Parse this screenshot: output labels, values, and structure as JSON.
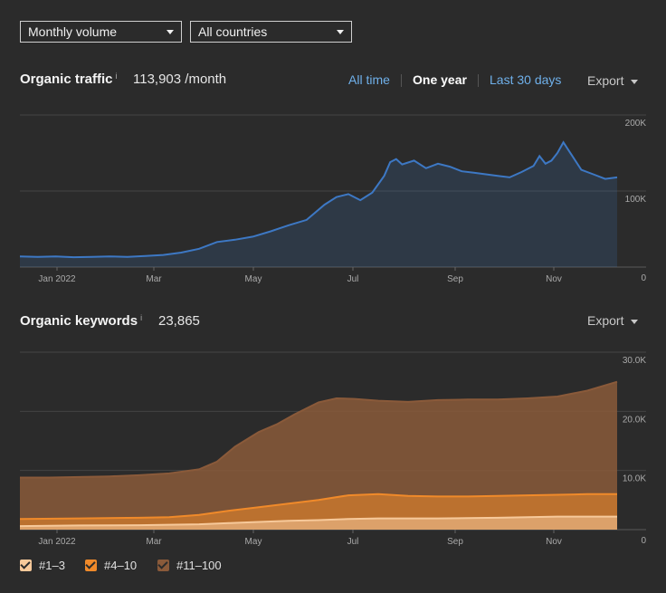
{
  "controls": {
    "volume_select": "Monthly volume",
    "country_select": "All countries"
  },
  "traffic": {
    "title": "Organic traffic",
    "info": "i",
    "value": "113,903 /month",
    "ranges": [
      "All time",
      "One year",
      "Last 30 days"
    ],
    "active_range": "One year",
    "export_label": "Export"
  },
  "keywords": {
    "title": "Organic keywords",
    "info": "i",
    "value": "23,865",
    "export_label": "Export"
  },
  "legend": [
    {
      "label": "#1–3",
      "color": "#f7c99a"
    },
    {
      "label": "#4–10",
      "color": "#f08a2a"
    },
    {
      "label": "#11–100",
      "color": "#8a5a3a"
    }
  ],
  "chart_data": [
    {
      "type": "area",
      "title": "Organic traffic",
      "x_tick_labels": [
        "Jan 2022",
        "Mar",
        "May",
        "Jul",
        "Sep",
        "Nov"
      ],
      "y_tick_labels": [
        "200K",
        "100K",
        "0"
      ],
      "ylim": [
        0,
        200000
      ],
      "color": "#3d78c4",
      "grid": true,
      "series": [
        {
          "x": [
            0,
            0.03,
            0.06,
            0.09,
            0.12,
            0.15,
            0.18,
            0.21,
            0.24,
            0.27,
            0.3,
            0.33,
            0.36,
            0.39,
            0.42,
            0.45,
            0.48,
            0.51,
            0.53,
            0.55,
            0.57,
            0.59,
            0.61,
            0.62,
            0.63,
            0.64,
            0.66,
            0.68,
            0.7,
            0.72,
            0.74,
            0.76,
            0.78,
            0.8,
            0.82,
            0.84,
            0.86,
            0.87,
            0.88,
            0.89,
            0.9,
            0.91,
            0.92,
            0.94,
            0.96,
            0.98,
            1.0
          ],
          "values": [
            14000,
            13500,
            14000,
            13000,
            13500,
            14000,
            13500,
            14500,
            16000,
            19000,
            24000,
            33000,
            36000,
            40000,
            47000,
            55000,
            62000,
            82000,
            92000,
            96000,
            88000,
            98000,
            120000,
            138000,
            142000,
            135000,
            140000,
            130000,
            136000,
            132000,
            126000,
            124000,
            122000,
            120000,
            118000,
            125000,
            133000,
            146000,
            136000,
            140000,
            150000,
            164000,
            152000,
            128000,
            122000,
            116000,
            118000
          ]
        }
      ]
    },
    {
      "type": "area",
      "title": "Organic keywords",
      "x_tick_labels": [
        "Jan 2022",
        "Mar",
        "May",
        "Jul",
        "Sep",
        "Nov"
      ],
      "y_tick_labels": [
        "30.0K",
        "20.0K",
        "10.0K",
        "0"
      ],
      "ylim": [
        0,
        30000
      ],
      "grid": true,
      "legend_position": "bottom-left",
      "series": [
        {
          "name": "#11–100",
          "color": "#8a5a3a",
          "x": [
            0,
            0.05,
            0.1,
            0.15,
            0.2,
            0.25,
            0.3,
            0.33,
            0.36,
            0.4,
            0.43,
            0.46,
            0.5,
            0.53,
            0.56,
            0.6,
            0.65,
            0.7,
            0.75,
            0.8,
            0.85,
            0.9,
            0.95,
            1.0
          ],
          "values": [
            8800,
            8800,
            8900,
            9000,
            9200,
            9500,
            10200,
            11500,
            14000,
            16500,
            17800,
            19500,
            21500,
            22200,
            22100,
            21800,
            21600,
            21900,
            22000,
            22000,
            22200,
            22500,
            23500,
            25000
          ]
        },
        {
          "name": "#4–10",
          "color": "#f08a2a",
          "x": [
            0,
            0.1,
            0.2,
            0.25,
            0.3,
            0.35,
            0.4,
            0.45,
            0.5,
            0.55,
            0.6,
            0.65,
            0.7,
            0.75,
            0.8,
            0.85,
            0.9,
            0.95,
            1.0
          ],
          "values": [
            1800,
            1900,
            2000,
            2100,
            2500,
            3200,
            3800,
            4400,
            5000,
            5800,
            6000,
            5700,
            5600,
            5600,
            5700,
            5800,
            5900,
            6000,
            6000
          ]
        },
        {
          "name": "#1–3",
          "color": "#f7c99a",
          "x": [
            0,
            0.1,
            0.2,
            0.3,
            0.35,
            0.4,
            0.45,
            0.5,
            0.55,
            0.6,
            0.65,
            0.7,
            0.75,
            0.8,
            0.85,
            0.9,
            0.95,
            1.0
          ],
          "values": [
            600,
            700,
            750,
            900,
            1100,
            1300,
            1500,
            1600,
            1800,
            1900,
            1900,
            1900,
            1950,
            2000,
            2100,
            2200,
            2200,
            2200
          ]
        }
      ]
    }
  ]
}
